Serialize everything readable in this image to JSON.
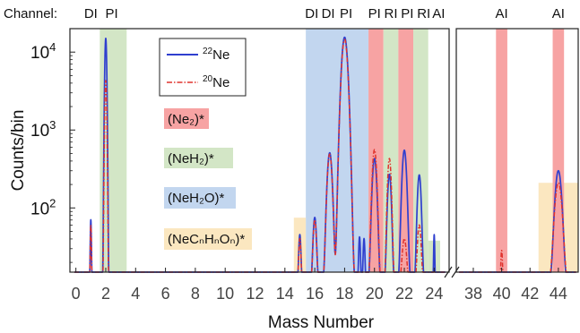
{
  "chart_data": {
    "type": "line",
    "channel_header": "Channel:",
    "xlabel": "Mass Number",
    "ylabel": "Counts/bin",
    "y_scale": "log",
    "ylim": [
      15,
      20000
    ],
    "y_ticks": [
      {
        "value": 100,
        "label": "10^2"
      },
      {
        "value": 1000,
        "label": "10^3"
      },
      {
        "value": 10000,
        "label": "10^4"
      }
    ],
    "x_segments": [
      {
        "xlim": [
          -0.4,
          25.0
        ],
        "ticks": [
          0,
          2,
          4,
          6,
          8,
          10,
          12,
          14,
          16,
          18,
          20,
          22,
          24
        ]
      },
      {
        "xlim": [
          36.8,
          45.4
        ],
        "ticks": [
          38,
          40,
          42,
          44
        ]
      }
    ],
    "channel_labels": [
      {
        "x": 1,
        "text": "DI"
      },
      {
        "x": 2.4,
        "text": "PI"
      },
      {
        "x": 15.8,
        "text": "DI"
      },
      {
        "x": 16.9,
        "text": "DI"
      },
      {
        "x": 18.1,
        "text": "PI"
      },
      {
        "x": 20.0,
        "text": "PI"
      },
      {
        "x": 21.1,
        "text": "RI"
      },
      {
        "x": 22.2,
        "text": "PI"
      },
      {
        "x": 23.3,
        "text": "RI"
      },
      {
        "x": 24.3,
        "text": "AI"
      },
      {
        "x": 40.0,
        "text": "AI"
      },
      {
        "x": 44.0,
        "text": "AI"
      }
    ],
    "legend": [
      {
        "label_base": "22",
        "label_elem": "Ne",
        "color": "#2f3fcf",
        "style": "solid"
      },
      {
        "label_base": "20",
        "label_elem": "Ne",
        "color": "#e0342e",
        "style": "dashdot"
      }
    ],
    "category_boxes": [
      {
        "label": "(Ne₂)*",
        "color": "#f7a3a3"
      },
      {
        "label": "(NeH₂)*",
        "color": "#d3e6c6"
      },
      {
        "label": "(NeH₂O)*",
        "color": "#c2d6ef"
      },
      {
        "label": "(NeCₙHₙOₙ)*",
        "color": "#fbe7c0"
      }
    ],
    "shaded_regions": [
      {
        "category": "NeH2",
        "x0": 1.6,
        "x1": 3.4,
        "ytop": 20000
      },
      {
        "category": "NeH2O",
        "x0": 15.4,
        "x1": 19.6,
        "ytop": 20000
      },
      {
        "category": "Ne2",
        "x0": 19.6,
        "x1": 20.6,
        "ytop": 20000
      },
      {
        "category": "NeH2",
        "x0": 20.6,
        "x1": 21.6,
        "ytop": 20000
      },
      {
        "category": "Ne2",
        "x0": 21.6,
        "x1": 22.6,
        "ytop": 20000
      },
      {
        "category": "NeH2",
        "x0": 22.6,
        "x1": 23.6,
        "ytop": 20000
      },
      {
        "category": "NeH2",
        "x0": 23.6,
        "x1": 24.4,
        "ytop": 38
      },
      {
        "category": "NeCnHnOn",
        "x0": 14.6,
        "x1": 15.4,
        "ytop": 75
      },
      {
        "category": "Ne2",
        "x0": 39.6,
        "x1": 40.4,
        "ytop": 20000
      },
      {
        "category": "NeCnHnOn",
        "x0": 42.6,
        "x1": 45.4,
        "ytop": 210
      },
      {
        "category": "Ne2",
        "x0": 43.6,
        "x1": 44.4,
        "ytop": 20000
      }
    ],
    "series": [
      {
        "name": "22Ne",
        "color": "#2f3fcf",
        "style": "solid",
        "peaks": [
          {
            "center": 1.0,
            "height": 60,
            "width": 0.03
          },
          {
            "center": 2.0,
            "height": 15000,
            "width": 0.05
          },
          {
            "center": 15.0,
            "height": 35,
            "width": 0.06
          },
          {
            "center": 16.0,
            "height": 65,
            "width": 0.09
          },
          {
            "center": 17.0,
            "height": 500,
            "width": 0.13
          },
          {
            "center": 18.0,
            "height": 15500,
            "width": 0.16
          },
          {
            "center": 19.0,
            "height": 32,
            "width": 0.05
          },
          {
            "center": 19.3,
            "height": 30,
            "width": 0.05
          },
          {
            "center": 20.0,
            "height": 420,
            "width": 0.12
          },
          {
            "center": 21.0,
            "height": 260,
            "width": 0.1
          },
          {
            "center": 22.0,
            "height": 540,
            "width": 0.12
          },
          {
            "center": 23.0,
            "height": 255,
            "width": 0.1
          },
          {
            "center": 24.0,
            "height": 35,
            "width": 0.03
          },
          {
            "center": 44.0,
            "height": 290,
            "width": 0.18
          }
        ]
      },
      {
        "name": "20Ne",
        "color": "#e0342e",
        "style": "dashdot",
        "peaks": [
          {
            "center": 1.0,
            "height": 50,
            "width": 0.03
          },
          {
            "center": 2.0,
            "height": 4300,
            "width": 0.05
          },
          {
            "center": 15.0,
            "height": 30,
            "width": 0.06
          },
          {
            "center": 16.0,
            "height": 60,
            "width": 0.09
          },
          {
            "center": 17.0,
            "height": 480,
            "width": 0.13
          },
          {
            "center": 18.0,
            "height": 14500,
            "width": 0.16
          },
          {
            "center": 20.0,
            "height": 550,
            "width": 0.12
          },
          {
            "center": 21.0,
            "height": 420,
            "width": 0.1
          },
          {
            "center": 22.0,
            "height": 30,
            "width": 0.12
          },
          {
            "center": 23.0,
            "height": 50,
            "width": 0.1
          },
          {
            "center": 40.0,
            "height": 18,
            "width": 0.05
          },
          {
            "center": 44.0,
            "height": 200,
            "width": 0.2
          }
        ]
      }
    ]
  }
}
